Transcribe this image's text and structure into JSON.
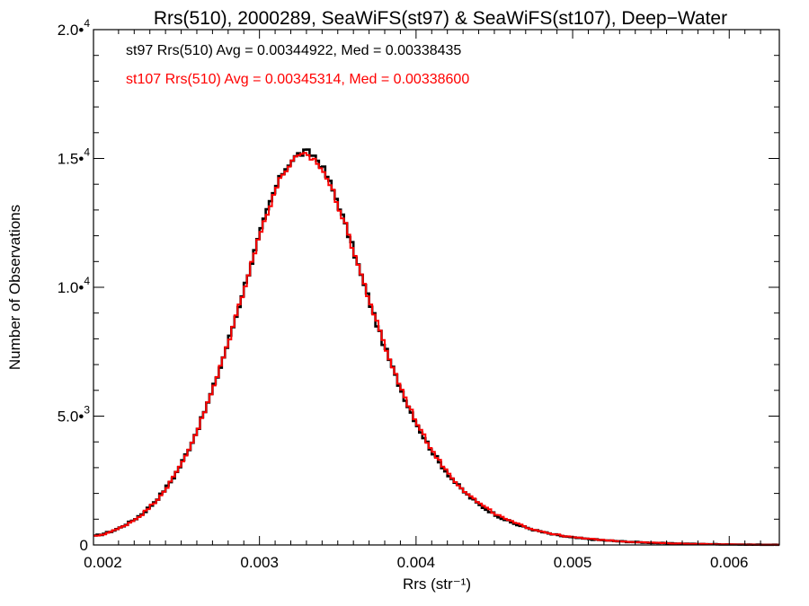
{
  "chart_data": {
    "type": "line",
    "style": "histogram-step",
    "title": "Rrs(510), 2000289, SeaWiFS(st97) & SeaWiFS(st107), Deep−Water",
    "xlabel": "Rrs (str⁻¹)",
    "ylabel": "Number of Observations",
    "xlim": [
      0.00194,
      0.00632
    ],
    "ylim": [
      0,
      20000
    ],
    "x_ticks": [
      {
        "value": 0.002,
        "label": "0.002"
      },
      {
        "value": 0.003,
        "label": "0.003"
      },
      {
        "value": 0.004,
        "label": "0.004"
      },
      {
        "value": 0.005,
        "label": "0.005"
      },
      {
        "value": 0.006,
        "label": "0.006"
      }
    ],
    "y_ticks": [
      {
        "value": 0,
        "mantissa": "0",
        "exponent": ""
      },
      {
        "value": 5000,
        "mantissa": "5.0•",
        "exponent": "3"
      },
      {
        "value": 10000,
        "mantissa": "1.0•",
        "exponent": "4"
      },
      {
        "value": 15000,
        "mantissa": "1.5•",
        "exponent": "4"
      },
      {
        "value": 20000,
        "mantissa": "2.0•",
        "exponent": "4"
      }
    ],
    "grid": false,
    "bin_width": 2e-05,
    "series": [
      {
        "label": "st97 Rrs(510) Avg = 0.00344922, Med = 0.00338435",
        "color": "#000000",
        "x": [
          0.00195,
          0.002,
          0.00205,
          0.0021,
          0.00215,
          0.0022,
          0.00225,
          0.0023,
          0.00235,
          0.0024,
          0.00245,
          0.0025,
          0.00255,
          0.0026,
          0.00265,
          0.0027,
          0.00275,
          0.0028,
          0.00285,
          0.0029,
          0.00295,
          0.003,
          0.00305,
          0.0031,
          0.00315,
          0.0032,
          0.00325,
          0.0033,
          0.00335,
          0.0034,
          0.00345,
          0.0035,
          0.00355,
          0.0036,
          0.00365,
          0.0037,
          0.00375,
          0.0038,
          0.00385,
          0.0039,
          0.00395,
          0.004,
          0.00405,
          0.0041,
          0.00415,
          0.0042,
          0.00425,
          0.0043,
          0.00435,
          0.0044,
          0.00445,
          0.0045,
          0.00455,
          0.0046,
          0.00465,
          0.0047,
          0.00475,
          0.0048,
          0.00485,
          0.0049,
          0.00495,
          0.005,
          0.0051,
          0.0052,
          0.0053,
          0.0054,
          0.0055,
          0.0056,
          0.0057,
          0.0058,
          0.0059,
          0.006,
          0.0061,
          0.0062,
          0.00632
        ],
        "y": [
          350,
          420,
          520,
          640,
          800,
          980,
          1200,
          1480,
          1800,
          2180,
          2620,
          3140,
          3740,
          4420,
          5180,
          6000,
          6900,
          7860,
          8880,
          9920,
          10980,
          12000,
          12950,
          13800,
          14450,
          14900,
          15150,
          15250,
          15100,
          14700,
          14050,
          13300,
          12400,
          11450,
          10450,
          9500,
          8560,
          7680,
          6860,
          6100,
          5400,
          4760,
          4180,
          3660,
          3200,
          2790,
          2430,
          2110,
          1830,
          1590,
          1380,
          1200,
          1040,
          900,
          780,
          680,
          590,
          510,
          440,
          380,
          330,
          290,
          230,
          180,
          140,
          110,
          85,
          65,
          50,
          38,
          28,
          20,
          14,
          10,
          8
        ]
      },
      {
        "label": "st107 Rrs(510) Avg = 0.00345314, Med = 0.00338600",
        "color": "#ff0000",
        "x": [
          0.00195,
          0.002,
          0.00205,
          0.0021,
          0.00215,
          0.0022,
          0.00225,
          0.0023,
          0.00235,
          0.0024,
          0.00245,
          0.0025,
          0.00255,
          0.0026,
          0.00265,
          0.0027,
          0.00275,
          0.0028,
          0.00285,
          0.0029,
          0.00295,
          0.003,
          0.00305,
          0.0031,
          0.00315,
          0.0032,
          0.00325,
          0.0033,
          0.00335,
          0.0034,
          0.00345,
          0.0035,
          0.00355,
          0.0036,
          0.00365,
          0.0037,
          0.00375,
          0.0038,
          0.00385,
          0.0039,
          0.00395,
          0.004,
          0.00405,
          0.0041,
          0.00415,
          0.0042,
          0.00425,
          0.0043,
          0.00435,
          0.0044,
          0.00445,
          0.0045,
          0.00455,
          0.0046,
          0.00465,
          0.0047,
          0.00475,
          0.0048,
          0.00485,
          0.0049,
          0.00495,
          0.005,
          0.0051,
          0.0052,
          0.0053,
          0.0054,
          0.0055,
          0.0056,
          0.0057,
          0.0058,
          0.0059,
          0.006,
          0.0061,
          0.0062,
          0.00632
        ],
        "y": [
          340,
          410,
          510,
          630,
          790,
          970,
          1190,
          1470,
          1790,
          2170,
          2610,
          3130,
          3730,
          4410,
          5170,
          5990,
          6890,
          7850,
          8870,
          9910,
          10970,
          11980,
          12920,
          13760,
          14400,
          14820,
          15050,
          15120,
          14950,
          14600,
          13980,
          13250,
          12380,
          11450,
          10480,
          9540,
          8610,
          7730,
          6910,
          6150,
          5450,
          4810,
          4230,
          3710,
          3250,
          2840,
          2480,
          2160,
          1880,
          1630,
          1420,
          1230,
          1070,
          930,
          810,
          700,
          610,
          530,
          460,
          395,
          345,
          300,
          240,
          190,
          145,
          115,
          88,
          68,
          52,
          40,
          30,
          21,
          15,
          11,
          8
        ]
      }
    ]
  }
}
